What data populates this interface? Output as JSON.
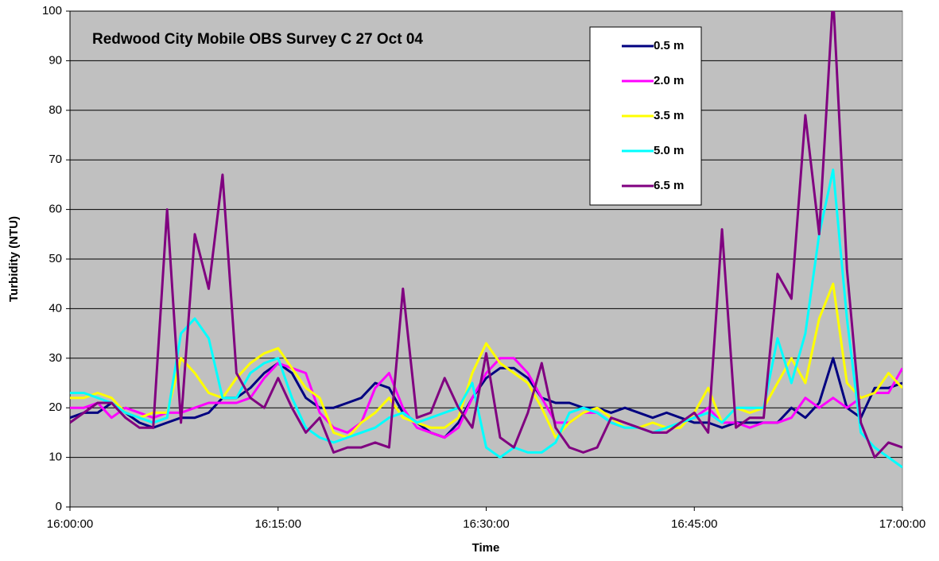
{
  "chart_data": {
    "type": "line",
    "title": "Redwood City Mobile OBS Survey C 27 Oct 04",
    "x_label": "Time",
    "y_label": "Turbidity (NTU)",
    "x": [
      "16:00:00",
      "16:01:00",
      "16:02:00",
      "16:03:00",
      "16:04:00",
      "16:05:00",
      "16:06:00",
      "16:07:00",
      "16:08:00",
      "16:09:00",
      "16:10:00",
      "16:11:00",
      "16:12:00",
      "16:13:00",
      "16:14:00",
      "16:15:00",
      "16:16:00",
      "16:17:00",
      "16:18:00",
      "16:19:00",
      "16:20:00",
      "16:21:00",
      "16:22:00",
      "16:23:00",
      "16:24:00",
      "16:25:00",
      "16:26:00",
      "16:27:00",
      "16:28:00",
      "16:29:00",
      "16:30:00",
      "16:31:00",
      "16:32:00",
      "16:33:00",
      "16:34:00",
      "16:35:00",
      "16:36:00",
      "16:37:00",
      "16:38:00",
      "16:39:00",
      "16:40:00",
      "16:41:00",
      "16:42:00",
      "16:43:00",
      "16:44:00",
      "16:45:00",
      "16:46:00",
      "16:47:00",
      "16:48:00",
      "16:49:00",
      "16:50:00",
      "16:51:00",
      "16:52:00",
      "16:53:00",
      "16:54:00",
      "16:55:00",
      "16:56:00",
      "16:57:00",
      "16:58:00",
      "16:59:00",
      "17:00:00"
    ],
    "xlim": [
      "16:00:00",
      "17:00:00"
    ],
    "xticks": [
      "16:00:00",
      "16:15:00",
      "16:30:00",
      "16:45:00",
      "17:00:00"
    ],
    "ylim": [
      0,
      100
    ],
    "yticks": [
      0,
      10,
      20,
      30,
      40,
      50,
      60,
      70,
      80,
      90,
      100
    ],
    "grid": true,
    "series": [
      {
        "name": "0.5 m",
        "color": "#000080",
        "values": [
          18,
          19,
          19,
          21,
          19,
          17,
          16,
          17,
          18,
          18,
          19,
          22,
          22,
          24,
          27,
          29,
          27,
          22,
          20,
          20,
          21,
          22,
          25,
          24,
          19,
          17,
          15,
          14,
          17,
          22,
          26,
          28,
          28,
          26,
          22,
          21,
          21,
          20,
          20,
          19,
          20,
          19,
          18,
          19,
          18,
          17,
          17,
          16,
          17,
          17,
          17,
          17,
          20,
          18,
          21,
          30,
          20,
          18,
          24,
          24,
          25
        ]
      },
      {
        "name": "2.0 m",
        "color": "#ff00ff",
        "values": [
          20,
          20,
          21,
          18,
          20,
          19,
          18,
          19,
          19,
          20,
          21,
          21,
          21,
          22,
          26,
          29,
          28,
          27,
          19,
          16,
          15,
          17,
          24,
          27,
          20,
          16,
          15,
          14,
          16,
          22,
          27,
          30,
          30,
          27,
          22,
          17,
          17,
          19,
          19,
          17,
          16,
          16,
          15,
          15,
          17,
          18,
          20,
          17,
          17,
          16,
          17,
          17,
          18,
          22,
          20,
          22,
          20,
          22,
          23,
          23,
          28
        ]
      },
      {
        "name": "3.5 m",
        "color": "#ffff00",
        "values": [
          22,
          22,
          23,
          22,
          19,
          18,
          19,
          19,
          30,
          27,
          23,
          22,
          26,
          29,
          31,
          32,
          28,
          24,
          22,
          15,
          14,
          17,
          19,
          22,
          18,
          17,
          16,
          16,
          18,
          27,
          33,
          29,
          27,
          25,
          20,
          14,
          17,
          19,
          20,
          18,
          16,
          16,
          17,
          16,
          16,
          19,
          24,
          17,
          20,
          19,
          20,
          25,
          30,
          25,
          38,
          45,
          25,
          22,
          23,
          27,
          24
        ]
      },
      {
        "name": "5.0 m",
        "color": "#00ffff",
        "values": [
          23,
          23,
          22,
          21,
          19,
          18,
          17,
          18,
          35,
          38,
          34,
          22,
          22,
          27,
          29,
          30,
          22,
          16,
          14,
          13,
          14,
          15,
          16,
          18,
          19,
          17,
          18,
          19,
          20,
          25,
          12,
          10,
          12,
          11,
          11,
          13,
          19,
          20,
          19,
          17,
          16,
          16,
          15,
          16,
          17,
          18,
          19,
          17,
          20,
          20,
          20,
          34,
          25,
          35,
          55,
          68,
          38,
          15,
          12,
          10,
          8
        ]
      },
      {
        "name": "6.5 m",
        "color": "#800080",
        "values": [
          17,
          19,
          21,
          21,
          18,
          16,
          16,
          60,
          17,
          55,
          44,
          67,
          27,
          22,
          20,
          26,
          20,
          15,
          18,
          11,
          12,
          12,
          13,
          12,
          44,
          18,
          19,
          26,
          20,
          16,
          31,
          14,
          12,
          19,
          29,
          16,
          12,
          11,
          12,
          18,
          17,
          16,
          15,
          15,
          17,
          19,
          15,
          56,
          16,
          18,
          18,
          47,
          42,
          79,
          55,
          103,
          48,
          17,
          10,
          13,
          12
        ]
      }
    ]
  }
}
